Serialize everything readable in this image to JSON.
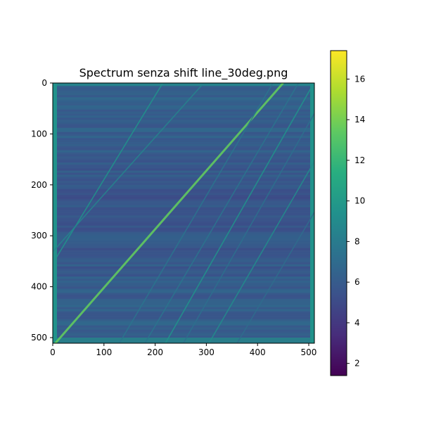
{
  "chart_data": {
    "type": "heatmap",
    "title": "Spectrum senza shift line_30deg.png",
    "colormap": "viridis",
    "image_size": [
      512,
      512
    ],
    "xlim": [
      0,
      511
    ],
    "ylim": [
      511,
      0
    ],
    "x_ticks": [
      0,
      100,
      200,
      300,
      400,
      500
    ],
    "y_ticks": [
      0,
      100,
      200,
      300,
      400,
      500
    ],
    "x_tick_labels": [
      "0",
      "100",
      "200",
      "300",
      "400",
      "500"
    ],
    "y_tick_labels": [
      "0",
      "100",
      "200",
      "300",
      "400",
      "500"
    ],
    "value_range": [
      1.4,
      17.4
    ],
    "background_level": 5.5,
    "colorbar_ticks": [
      2,
      4,
      6,
      8,
      10,
      12,
      14,
      16
    ],
    "colorbar_tick_labels": [
      "2",
      "4",
      "6",
      "8",
      "10",
      "12",
      "14",
      "16"
    ],
    "diagonal_lines": [
      {
        "x_at_bottom": 5,
        "x_at_top": 450,
        "level": 13.5
      },
      {
        "x_at_bottom": 220,
        "x_at_top": 510,
        "level": 9.5
      },
      {
        "x_at_bottom": 305,
        "x_at_top": 600,
        "level": 9.0
      },
      {
        "x_at_bottom": -95,
        "x_at_top": 215,
        "level": 9.5
      },
      {
        "x_at_bottom": -160,
        "x_at_top": 295,
        "level": 8.5
      },
      {
        "x_at_bottom": 130,
        "x_at_top": 430,
        "level": 7.5
      },
      {
        "x_at_bottom": 180,
        "x_at_top": 480,
        "level": 7.5
      },
      {
        "x_at_bottom": 255,
        "x_at_top": 545,
        "level": 7.2
      },
      {
        "x_at_bottom": 360,
        "x_at_top": 660,
        "level": 7.0
      }
    ],
    "edge_level": 9.5
  }
}
